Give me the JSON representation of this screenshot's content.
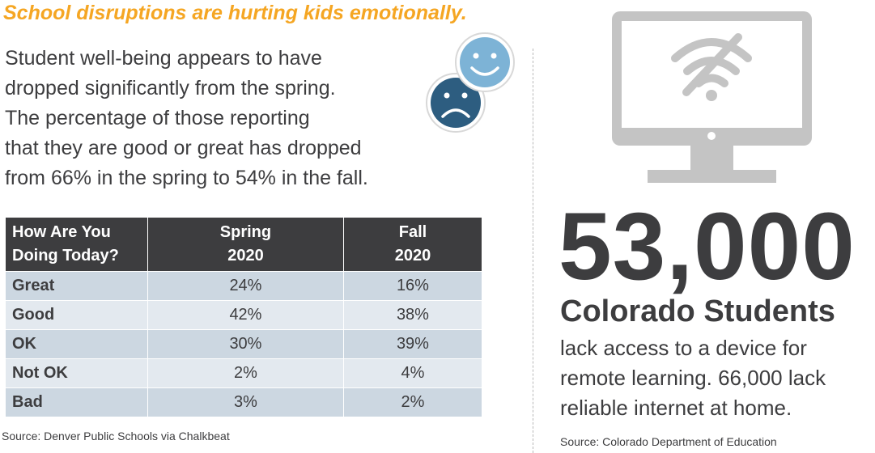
{
  "headline": "School disruptions are hurting kids emotionally.",
  "intro_lines": [
    "Student well-being appears to have",
    "dropped significantly from the spring.",
    "The percentage of those reporting",
    "that they are good or great has dropped",
    "from 66% in the spring to 54% in the fall."
  ],
  "table": {
    "headers": {
      "label": [
        "How Are You",
        "Doing Today?"
      ],
      "spring": [
        "Spring",
        "2020"
      ],
      "fall": [
        "Fall",
        "2020"
      ]
    },
    "rows": [
      {
        "label": "Great",
        "spring": "24%",
        "fall": "16%"
      },
      {
        "label": "Good",
        "spring": "42%",
        "fall": "38%"
      },
      {
        "label": "OK",
        "spring": "30%",
        "fall": "39%"
      },
      {
        "label": "Not OK",
        "spring": "2%",
        "fall": "4%"
      },
      {
        "label": "Bad",
        "spring": "3%",
        "fall": "2%"
      }
    ]
  },
  "source_left": "Source: Denver Public Schools via Chalkbeat",
  "big_number": "53,000",
  "students_label": "Colorado Students",
  "lack_lines": [
    "lack access to a device for",
    "remote learning. 66,000 lack",
    "reliable internet at home."
  ],
  "source_right": "Source: Colorado Department of Education",
  "icons": {
    "happy_face": "smiley-face-icon",
    "sad_face": "sad-face-icon",
    "monitor": "monitor-no-wifi-icon"
  },
  "colors": {
    "headline": "#f5a623",
    "text": "#3d3d3f",
    "table_header": "#3d3d3f",
    "row_dark": "#ccd7e1",
    "row_light": "#e3e9ef",
    "happy_face": "#7db3d6",
    "sad_face": "#2d5d80",
    "monitor": "#c4c4c4"
  }
}
